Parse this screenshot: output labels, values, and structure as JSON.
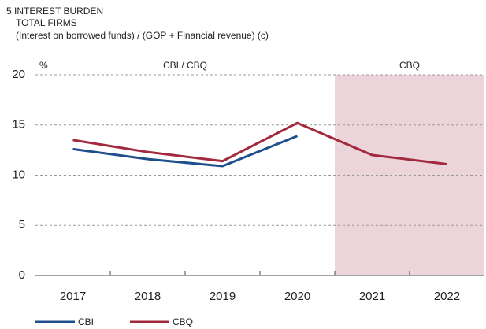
{
  "chart_data": {
    "type": "line",
    "title": "5 INTEREST BURDEN",
    "subtitle": "TOTAL FIRMS",
    "description": "(Interest on borrowed funds) / (GOP + Financial revenue) (c)",
    "y_label": "%",
    "annotations": [
      "CBI / CBQ",
      "CBQ"
    ],
    "shade_color": "#ecd5da",
    "categories": [
      "2017",
      "2018",
      "2019",
      "2020",
      "2021",
      "2022"
    ],
    "series": [
      {
        "name": "CBI",
        "color": "#1f4e8c",
        "values": [
          12.6,
          11.6,
          10.9,
          13.9,
          null,
          null
        ]
      },
      {
        "name": "CBQ",
        "color": "#a3293f",
        "values": [
          13.5,
          12.3,
          11.4,
          15.2,
          12.0,
          11.1
        ]
      }
    ],
    "ylim": [
      0,
      20
    ],
    "yticks": [
      0,
      5,
      10,
      15,
      20
    ],
    "grid": true
  }
}
